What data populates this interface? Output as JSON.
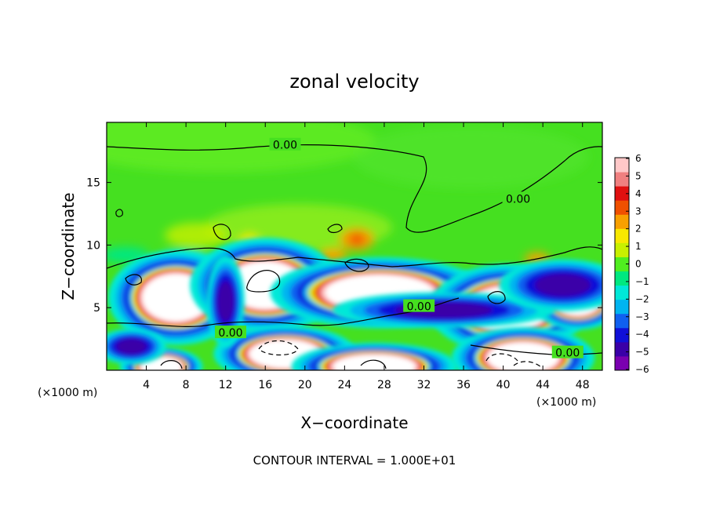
{
  "chart_data": {
    "type": "heatmap",
    "title": "zonal velocity",
    "xlabel": "X−coordinate",
    "ylabel": "Z−coordinate",
    "x_units_left": "(×1000 m)",
    "x_units_right": "(×1000 m)",
    "xlim": [
      0,
      50
    ],
    "ylim": [
      0,
      19.8
    ],
    "x_ticks": [
      4,
      8,
      12,
      16,
      20,
      24,
      28,
      32,
      36,
      40,
      44,
      48
    ],
    "y_ticks": [
      5,
      10,
      15
    ],
    "colorbar": {
      "min": -6,
      "max": 6,
      "ticks": [
        6,
        5,
        4,
        3,
        2,
        1,
        0,
        -1,
        -2,
        -3,
        -4,
        -5,
        -6
      ],
      "tick_labels": [
        "6",
        "5",
        "4",
        "3",
        "2",
        "1",
        "0",
        "−1",
        "−2",
        "−3",
        "−4",
        "−5",
        "−6"
      ],
      "colors": [
        "#7a00b0",
        "#3a00a8",
        "#1010d8",
        "#1060f0",
        "#00b4f0",
        "#00e8d8",
        "#00e880",
        "#50ee20",
        "#c8f000",
        "#f8e800",
        "#f8a000",
        "#f05000",
        "#e01010",
        "#f08080",
        "#ffc8c8"
      ]
    },
    "contour_labels": [
      {
        "text": "0.00",
        "x": 18,
        "z": 18.0
      },
      {
        "text": "0.00",
        "x": 41.5,
        "z": 13.7
      },
      {
        "text": "0.00",
        "x": 31.5,
        "z": 5.1
      },
      {
        "text": "0.00",
        "x": 12.5,
        "z": 3.0
      },
      {
        "text": "0.00",
        "x": 46.5,
        "z": 1.4
      }
    ],
    "contour_interval_text": "CONTOUR INTERVAL = 1.000E+01",
    "field_features": [
      {
        "kind": "saturated_positive",
        "x": 7,
        "z": 5.8,
        "rx": 3.6,
        "rz": 2.0
      },
      {
        "kind": "saturated_positive",
        "x": 16,
        "z": 6.8,
        "rx": 4.0,
        "rz": 2.0
      },
      {
        "kind": "saturated_positive",
        "x": 27.5,
        "z": 6.2,
        "rx": 5.8,
        "rz": 1.5
      },
      {
        "kind": "saturated_positive",
        "x": 40.5,
        "z": 4.9,
        "rx": 4.2,
        "rz": 1.9
      },
      {
        "kind": "saturated_positive",
        "x": 18,
        "z": 1.3,
        "rx": 3.8,
        "rz": 1.2
      },
      {
        "kind": "saturated_positive",
        "x": 27,
        "z": 0.3,
        "rx": 4.4,
        "rz": 1.0
      },
      {
        "kind": "saturated_positive",
        "x": 5.5,
        "z": 0.3,
        "rx": 2.2,
        "rz": 0.8
      },
      {
        "kind": "saturated_positive",
        "x": 42,
        "z": 1.0,
        "rx": 3.8,
        "rz": 1.3
      },
      {
        "kind": "saturated_positive",
        "x": 47.5,
        "z": 5.5,
        "rx": 2.4,
        "rz": 1.2
      },
      {
        "kind": "strong_negative",
        "x": 34,
        "z": 4.8,
        "rx": 7.0,
        "rz": 0.9
      },
      {
        "kind": "strong_negative",
        "x": 12,
        "z": 5.5,
        "rx": 1.2,
        "rz": 2.3
      },
      {
        "kind": "strong_negative",
        "x": 46,
        "z": 6.8,
        "rx": 4.0,
        "rz": 1.3
      },
      {
        "kind": "strong_negative",
        "x": 2.5,
        "z": 1.9,
        "rx": 2.2,
        "rz": 0.9
      }
    ]
  },
  "page": {
    "background": "#ffffff",
    "field_background": "#45e020"
  }
}
